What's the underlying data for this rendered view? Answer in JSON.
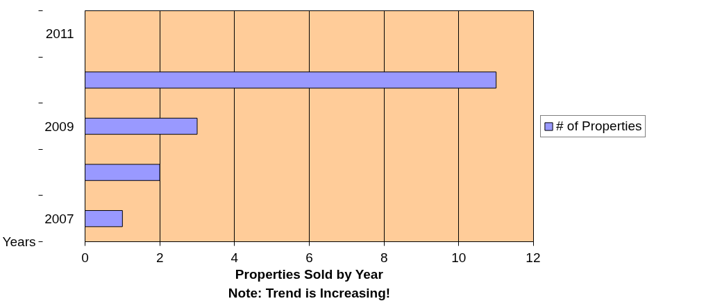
{
  "chart_data": {
    "type": "bar",
    "orientation": "horizontal",
    "title": "Properties Sold by Year",
    "subtitle": "Note: Trend is Increasing!",
    "ylabel": "Years",
    "categories": [
      "2011",
      null,
      "2009",
      null,
      "2007"
    ],
    "series": [
      {
        "name": "# of Properties",
        "color": "#9999ff",
        "values": [
          null,
          11,
          3,
          2,
          1
        ]
      }
    ],
    "xlim": [
      0,
      12
    ],
    "xticks": [
      0,
      2,
      4,
      6,
      8,
      10,
      12
    ],
    "grid": "x",
    "legend": "right"
  }
}
